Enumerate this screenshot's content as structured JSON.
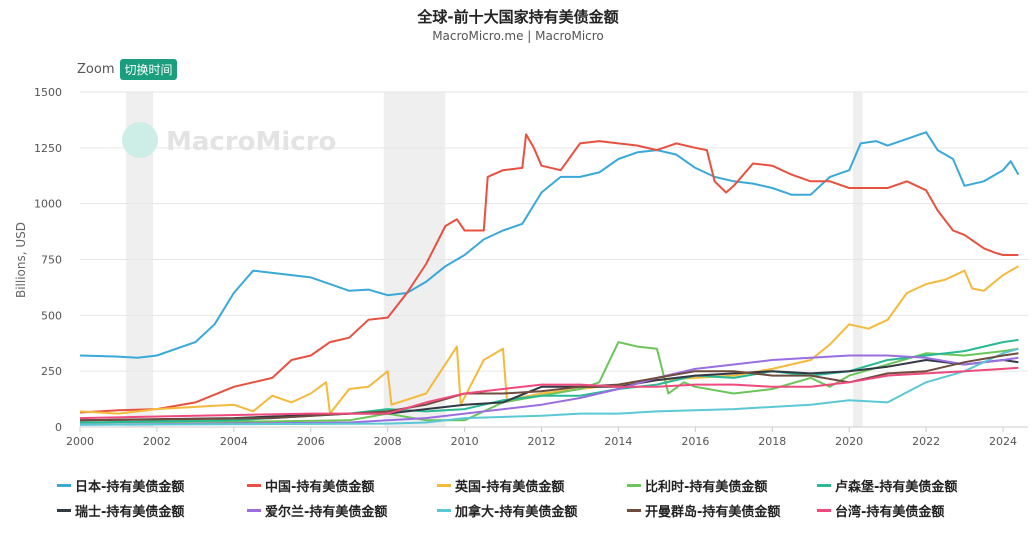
{
  "chart_data": {
    "type": "line",
    "title": "全球-前十大国家持有美债金额",
    "subtitle": "MacroMicro.me | MacroMicro",
    "watermark": "MacroMicro",
    "ylabel": "Billions, USD",
    "ylim": [
      0,
      1500
    ],
    "yticks": [
      "0",
      "250",
      "500",
      "750",
      "1000",
      "1250",
      "1500"
    ],
    "xlim": [
      2000,
      2024.5
    ],
    "xticks": [
      "2000",
      "2002",
      "2004",
      "2006",
      "2008",
      "2010",
      "2012",
      "2014",
      "2016",
      "2018",
      "2020",
      "2022",
      "2024"
    ],
    "recessions": [
      [
        2001.2,
        2001.9
      ],
      [
        2007.9,
        2009.5
      ],
      [
        2020.1,
        2020.35
      ]
    ],
    "series": [
      {
        "name": "日本-持有美债金额",
        "color": "#3aa8d8",
        "x": [
          2000,
          2001,
          2001.5,
          2002,
          2003,
          2003.5,
          2004,
          2004.5,
          2005,
          2006,
          2006.5,
          2007,
          2007.5,
          2008,
          2008.5,
          2009,
          2009.5,
          2010,
          2010.5,
          2011,
          2011.5,
          2012,
          2012.5,
          2013,
          2013.5,
          2014,
          2014.5,
          2015,
          2015.5,
          2016,
          2016.5,
          2017,
          2017.5,
          2018,
          2018.5,
          2019,
          2019.5,
          2020,
          2020.3,
          2020.7,
          2021,
          2021.5,
          2022,
          2022.3,
          2022.7,
          2023,
          2023.5,
          2024,
          2024.2,
          2024.4
        ],
        "y": [
          320,
          315,
          310,
          320,
          380,
          460,
          600,
          700,
          690,
          670,
          640,
          610,
          615,
          590,
          600,
          650,
          720,
          770,
          840,
          880,
          910,
          1050,
          1120,
          1120,
          1140,
          1200,
          1230,
          1240,
          1220,
          1160,
          1120,
          1100,
          1090,
          1070,
          1040,
          1040,
          1120,
          1150,
          1270,
          1280,
          1260,
          1290,
          1320,
          1240,
          1200,
          1080,
          1100,
          1150,
          1190,
          1130
        ]
      },
      {
        "name": "中国-持有美债金额",
        "color": "#e8503f",
        "x": [
          2000,
          2001,
          2002,
          2003,
          2004,
          2005,
          2005.5,
          2006,
          2006.5,
          2007,
          2007.5,
          2008,
          2008.5,
          2009,
          2009.5,
          2009.8,
          2010,
          2010.5,
          2010.6,
          2011,
          2011.5,
          2011.6,
          2011.8,
          2012,
          2012.5,
          2013,
          2013.5,
          2014,
          2014.5,
          2015,
          2015.5,
          2016,
          2016.3,
          2016.5,
          2016.8,
          2017,
          2017.5,
          2018,
          2018.5,
          2019,
          2019.5,
          2020,
          2020.5,
          2021,
          2021.5,
          2022,
          2022.3,
          2022.7,
          2023,
          2023.5,
          2023.8,
          2024,
          2024.4
        ],
        "y": [
          65,
          75,
          80,
          110,
          180,
          220,
          300,
          320,
          380,
          400,
          480,
          490,
          600,
          730,
          900,
          930,
          880,
          880,
          1120,
          1150,
          1160,
          1310,
          1250,
          1170,
          1150,
          1270,
          1280,
          1270,
          1260,
          1240,
          1270,
          1250,
          1240,
          1100,
          1050,
          1080,
          1180,
          1170,
          1130,
          1100,
          1100,
          1070,
          1070,
          1070,
          1100,
          1060,
          970,
          880,
          860,
          800,
          780,
          770,
          770
        ]
      },
      {
        "name": "英国-持有美债金额",
        "color": "#f5b93b",
        "x": [
          2000,
          2001,
          2002,
          2003,
          2004,
          2004.5,
          2005,
          2005.5,
          2006,
          2006.4,
          2006.5,
          2007,
          2007.5,
          2008,
          2008.1,
          2009,
          2009.8,
          2009.9,
          2010.5,
          2011,
          2011.1,
          2012,
          2013,
          2014,
          2015,
          2016,
          2017,
          2018,
          2019,
          2019.5,
          2020,
          2020.5,
          2021,
          2021.5,
          2022,
          2022.5,
          2023,
          2023.2,
          2023.5,
          2024,
          2024.4
        ],
        "y": [
          70,
          60,
          80,
          90,
          100,
          70,
          140,
          110,
          150,
          200,
          60,
          170,
          180,
          250,
          100,
          150,
          360,
          100,
          300,
          350,
          120,
          150,
          170,
          190,
          210,
          220,
          230,
          260,
          300,
          370,
          460,
          440,
          480,
          600,
          640,
          660,
          700,
          620,
          610,
          680,
          720
        ]
      },
      {
        "name": "比利时-持有美债金额",
        "color": "#6cc55a",
        "x": [
          2000,
          2005,
          2007,
          2008,
          2009,
          2010,
          2011,
          2012,
          2013,
          2013.5,
          2014,
          2014.5,
          2015,
          2015.3,
          2015.7,
          2016,
          2017,
          2018,
          2019,
          2019.5,
          2020,
          2021,
          2022,
          2023,
          2024,
          2024.4
        ],
        "y": [
          20,
          25,
          30,
          60,
          30,
          30,
          110,
          140,
          170,
          200,
          380,
          360,
          350,
          150,
          200,
          180,
          150,
          170,
          220,
          180,
          230,
          280,
          330,
          320,
          340,
          350
        ]
      },
      {
        "name": "卢森堡-持有美债金额",
        "color": "#29b994",
        "x": [
          2000,
          2004,
          2006,
          2007,
          2008,
          2009,
          2010,
          2011,
          2012,
          2013,
          2014,
          2015,
          2016,
          2017,
          2018,
          2019,
          2020,
          2021,
          2022,
          2023,
          2024,
          2024.4
        ],
        "y": [
          20,
          30,
          50,
          60,
          80,
          70,
          80,
          120,
          140,
          140,
          170,
          190,
          230,
          220,
          250,
          230,
          250,
          300,
          320,
          340,
          380,
          390
        ]
      },
      {
        "name": "瑞士-持有美债金额",
        "color": "#333845",
        "x": [
          2000,
          2004,
          2007,
          2008,
          2009,
          2010,
          2011,
          2012,
          2013,
          2014,
          2015,
          2016,
          2017,
          2018,
          2019,
          2020,
          2021,
          2022,
          2023,
          2024,
          2024.4
        ],
        "y": [
          30,
          40,
          60,
          60,
          80,
          100,
          110,
          180,
          180,
          180,
          210,
          230,
          240,
          250,
          240,
          250,
          270,
          300,
          280,
          300,
          290
        ]
      },
      {
        "name": "爱尔兰-持有美债金额",
        "color": "#9a6ee0",
        "x": [
          2000,
          2007,
          2009,
          2010,
          2012,
          2013,
          2014,
          2015,
          2016,
          2017,
          2018,
          2019,
          2020,
          2021,
          2022,
          2023,
          2024,
          2024.4
        ],
        "y": [
          10,
          20,
          40,
          60,
          100,
          130,
          170,
          220,
          260,
          280,
          300,
          310,
          320,
          320,
          310,
          280,
          300,
          310
        ]
      },
      {
        "name": "加拿大-持有美债金额",
        "color": "#5cc8d6",
        "x": [
          2000,
          2008,
          2009,
          2010,
          2012,
          2013,
          2014,
          2015,
          2017,
          2019,
          2020,
          2021,
          2022,
          2023,
          2024,
          2024.4
        ],
        "y": [
          10,
          15,
          20,
          40,
          50,
          60,
          60,
          70,
          80,
          100,
          120,
          110,
          200,
          250,
          330,
          350
        ]
      },
      {
        "name": "开曼群岛-持有美债金额",
        "color": "#6e4c3e",
        "x": [
          2000,
          2005,
          2008,
          2009,
          2010,
          2011,
          2012,
          2013,
          2014,
          2015,
          2016,
          2017,
          2018,
          2019,
          2020,
          2021,
          2022,
          2023,
          2024,
          2024.4
        ],
        "y": [
          30,
          40,
          70,
          100,
          150,
          150,
          160,
          180,
          190,
          220,
          250,
          250,
          230,
          230,
          200,
          240,
          250,
          290,
          320,
          330
        ]
      },
      {
        "name": "台湾-持有美债金额",
        "color": "#ee4a7d",
        "x": [
          2000,
          2003,
          2006,
          2008,
          2009,
          2010,
          2011,
          2012,
          2013,
          2014,
          2015,
          2016,
          2017,
          2018,
          2019,
          2020,
          2021,
          2022,
          2023,
          2024,
          2024.4
        ],
        "y": [
          40,
          50,
          60,
          60,
          110,
          150,
          170,
          190,
          190,
          180,
          180,
          190,
          190,
          180,
          180,
          200,
          230,
          240,
          250,
          260,
          265
        ]
      }
    ]
  },
  "controls": {
    "zoom_label": "Zoom",
    "switch_time": "切换时间"
  }
}
